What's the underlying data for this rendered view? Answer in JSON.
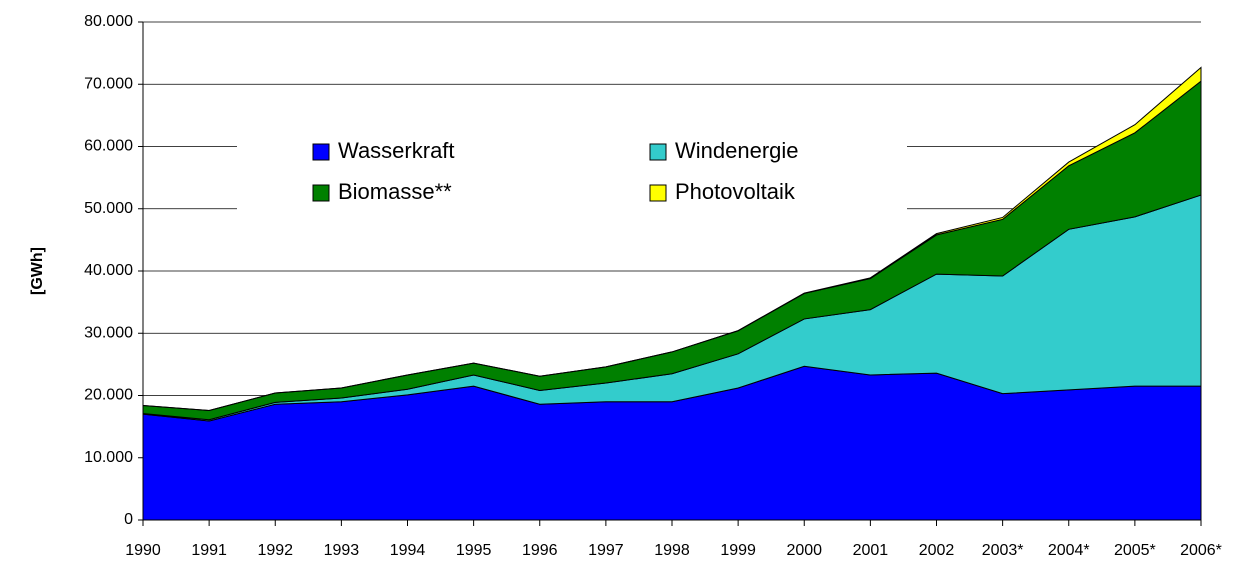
{
  "chart_data": {
    "type": "stacked_area",
    "y_label": "[GWh]",
    "categories": [
      "1990",
      "1991",
      "1992",
      "1993",
      "1994",
      "1995",
      "1996",
      "1997",
      "1998",
      "1999",
      "2000",
      "2001",
      "2002",
      "2003*",
      "2004*",
      "2005*",
      "2006*"
    ],
    "series": [
      {
        "name": "Wasserkraft",
        "color": "#0000ff",
        "values": [
          17000,
          15900,
          18600,
          19000,
          20100,
          21500,
          18600,
          19000,
          19000,
          21200,
          24700,
          23300,
          23600,
          20300,
          20900,
          21500,
          21500
        ]
      },
      {
        "name": "Windenergie",
        "color": "#33cccc",
        "values": [
          100,
          200,
          300,
          600,
          900,
          1800,
          2200,
          3000,
          4500,
          5500,
          7600,
          10500,
          15900,
          18900,
          25800,
          27200,
          30700
        ]
      },
      {
        "name": "Biomasse**",
        "color": "#008000",
        "values": [
          1300,
          1500,
          1500,
          1600,
          2300,
          1900,
          2300,
          2600,
          3500,
          3700,
          4100,
          5000,
          6300,
          9100,
          10200,
          13500,
          18300
        ]
      },
      {
        "name": "Photovoltaik",
        "color": "#ffff00",
        "values": [
          0,
          0,
          0,
          0,
          0,
          0,
          0,
          0,
          0,
          30,
          60,
          100,
          200,
          300,
          600,
          1300,
          2200
        ]
      }
    ],
    "ylim": [
      0,
      80000
    ],
    "yticks": [
      0,
      {
        "value": 10000,
        "label": "10.000"
      },
      {
        "value": 20000,
        "label": "20.000"
      },
      {
        "value": 30000,
        "label": "30.000"
      },
      {
        "value": 40000,
        "label": "40.000"
      },
      {
        "value": 50000,
        "label": "50.000"
      },
      {
        "value": 60000,
        "label": "60.000"
      },
      {
        "value": 70000,
        "label": "70.000"
      },
      {
        "value": 80000,
        "label": "80.000"
      }
    ],
    "grid": true
  }
}
